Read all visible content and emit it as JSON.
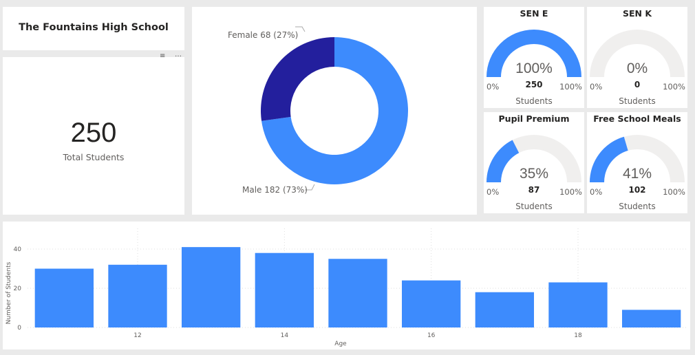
{
  "school_name": "The Fountains High School",
  "kpi": {
    "value": "250",
    "label": "Total Students"
  },
  "header_icons": [
    "filter-icon",
    "more-options-icon"
  ],
  "donut": {
    "segments": [
      {
        "label": "Female 68 (27%)",
        "value": 68,
        "color": "#231f9d"
      },
      {
        "label": "Male 182 (73%)",
        "value": 182,
        "color": "#3d8bfd"
      }
    ]
  },
  "gauges": [
    {
      "title": "SEN E",
      "percent": 100,
      "percent_text": "100%",
      "count": "250",
      "unit": "Students",
      "min": "0%",
      "max": "100%"
    },
    {
      "title": "SEN K",
      "percent": 0,
      "percent_text": "0%",
      "count": "0",
      "unit": "Students",
      "min": "0%",
      "max": "100%"
    },
    {
      "title": "Pupil Premium",
      "percent": 35,
      "percent_text": "35%",
      "count": "87",
      "unit": "Students",
      "min": "0%",
      "max": "100%"
    },
    {
      "title": "Free School Meals",
      "percent": 41,
      "percent_text": "41%",
      "count": "102",
      "unit": "Students",
      "min": "0%",
      "max": "100%"
    }
  ],
  "chart_data": {
    "type": "bar",
    "x": [
      11,
      12,
      13,
      14,
      15,
      16,
      17,
      18,
      19
    ],
    "values": [
      30,
      32,
      41,
      38,
      35,
      24,
      18,
      23,
      9
    ],
    "xlabel": "Age",
    "ylabel": "Number of Students",
    "ylim": [
      0,
      50
    ],
    "yticks": [
      "0",
      "20",
      "40"
    ],
    "xticks": [
      "12",
      "14",
      "16",
      "18"
    ],
    "color": "#3d8bfd",
    "grid": true
  }
}
